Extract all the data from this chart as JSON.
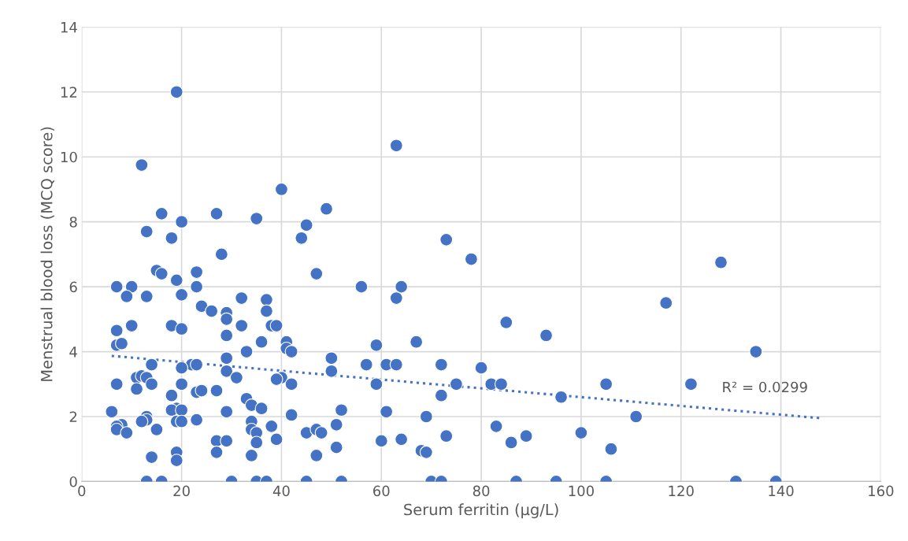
{
  "chart_data": {
    "type": "scatter",
    "xlabel": "Serum ferritin (µg/L)",
    "ylabel": "Menstrual blood loss (MCQ score)",
    "xlim": [
      0,
      160
    ],
    "xticks": [
      0,
      20,
      40,
      60,
      80,
      100,
      120,
      140,
      160
    ],
    "ylim": [
      0,
      14
    ],
    "yticks": [
      0,
      2,
      4,
      6,
      8,
      10,
      12,
      14
    ],
    "grid": true,
    "marker": "circle",
    "annotations": [
      "R² = 0.0299"
    ],
    "series": [
      {
        "color": "#4472c4",
        "x": [
          19,
          12,
          63,
          40,
          49,
          16,
          27,
          35,
          20,
          45,
          13,
          18,
          44,
          73,
          28,
          78,
          128,
          15,
          16,
          23,
          47,
          19,
          7,
          10,
          23,
          56,
          64,
          9,
          13,
          20,
          32,
          63,
          37,
          117,
          24,
          26,
          37,
          29,
          29,
          85,
          10,
          18,
          32,
          38,
          39,
          7,
          20,
          29,
          93,
          36,
          41,
          67,
          7,
          8,
          59,
          41,
          42,
          33,
          135,
          29,
          50,
          22,
          23,
          14,
          57,
          61,
          63,
          72,
          20,
          80,
          29,
          50,
          40,
          39,
          31,
          11,
          12,
          13,
          14,
          7,
          20,
          42,
          59,
          75,
          82,
          84,
          105,
          122,
          23,
          24,
          27,
          11,
          18,
          72,
          96,
          33,
          34,
          36,
          19,
          18,
          20,
          6,
          29,
          61,
          52,
          42,
          69,
          111,
          13,
          13,
          12,
          19,
          20,
          23,
          34,
          51,
          83,
          8,
          7,
          7,
          9,
          15,
          38,
          34,
          35,
          45,
          47,
          48,
          73,
          89,
          100,
          27,
          29,
          35,
          39,
          60,
          64,
          86,
          51,
          106,
          27,
          68,
          69,
          14,
          19,
          19,
          34,
          47,
          13,
          16,
          30,
          35,
          37,
          45,
          52,
          70,
          72,
          87,
          95,
          105,
          131,
          139
        ],
        "values": [
          12.0,
          9.75,
          10.35,
          9.0,
          8.4,
          8.25,
          8.25,
          8.1,
          8.0,
          7.9,
          7.7,
          7.5,
          7.5,
          7.45,
          7.0,
          6.85,
          6.75,
          6.5,
          6.4,
          6.45,
          6.4,
          6.2,
          6.0,
          6.0,
          6.0,
          6.0,
          6.0,
          5.7,
          5.7,
          5.75,
          5.65,
          5.65,
          5.6,
          5.5,
          5.4,
          5.25,
          5.25,
          5.2,
          5.0,
          4.9,
          4.8,
          4.8,
          4.8,
          4.8,
          4.8,
          4.65,
          4.7,
          4.5,
          4.5,
          4.3,
          4.3,
          4.3,
          4.2,
          4.25,
          4.2,
          4.1,
          4.0,
          4.0,
          4.0,
          3.8,
          3.8,
          3.6,
          3.6,
          3.6,
          3.6,
          3.6,
          3.6,
          3.6,
          3.5,
          3.5,
          3.4,
          3.4,
          3.2,
          3.15,
          3.2,
          3.2,
          3.25,
          3.2,
          3.0,
          3.0,
          3.0,
          3.0,
          3.0,
          3.0,
          3.0,
          3.0,
          3.0,
          3.0,
          2.75,
          2.8,
          2.8,
          2.85,
          2.65,
          2.65,
          2.6,
          2.55,
          2.35,
          2.25,
          2.25,
          2.2,
          2.2,
          2.15,
          2.15,
          2.15,
          2.2,
          2.05,
          2.0,
          2.0,
          2.0,
          1.9,
          1.85,
          1.85,
          1.85,
          1.9,
          1.85,
          1.75,
          1.7,
          1.75,
          1.7,
          1.6,
          1.5,
          1.6,
          1.7,
          1.6,
          1.5,
          1.5,
          1.6,
          1.5,
          1.4,
          1.4,
          1.5,
          1.25,
          1.25,
          1.2,
          1.3,
          1.25,
          1.3,
          1.2,
          1.05,
          1.0,
          0.9,
          0.95,
          0.9,
          0.75,
          0.9,
          0.65,
          0.8,
          0.8,
          0,
          0,
          0,
          0,
          0,
          0,
          0,
          0,
          0,
          0,
          0,
          0,
          0,
          0
        ]
      },
      {
        "type": "line",
        "color": "#4472c4",
        "line_style": "dotted",
        "marker": "none",
        "x": [
          6,
          148
        ],
        "values": [
          3.87,
          1.95
        ]
      }
    ]
  }
}
